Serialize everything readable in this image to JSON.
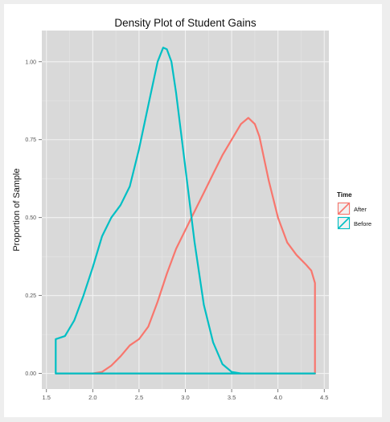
{
  "chart_data": {
    "type": "line",
    "title": "Density Plot of Student Gains",
    "xlabel": "",
    "ylabel": "Proportion of Sample",
    "xlim": [
      1.45,
      4.55
    ],
    "ylim": [
      -0.05,
      1.1
    ],
    "x_ticks": [
      1.5,
      2.0,
      2.5,
      3.0,
      3.5,
      4.0,
      4.5
    ],
    "x_tick_labels": [
      "1.5",
      "2.0",
      "2.5",
      "3.0",
      "3.5",
      "4.0",
      "4.5"
    ],
    "y_ticks": [
      0.0,
      0.25,
      0.5,
      0.75,
      1.0
    ],
    "y_tick_labels": [
      "0.00",
      "0.25",
      "0.50",
      "0.75",
      "1.00"
    ],
    "grid": true,
    "legend_position": "right",
    "legend_title": "Time",
    "series": [
      {
        "name": "After",
        "color": "#F8766D",
        "points": [
          [
            1.6,
            0.0
          ],
          [
            2.0,
            0.0
          ],
          [
            2.1,
            0.005
          ],
          [
            2.2,
            0.025
          ],
          [
            2.3,
            0.055
          ],
          [
            2.4,
            0.09
          ],
          [
            2.5,
            0.11
          ],
          [
            2.6,
            0.15
          ],
          [
            2.7,
            0.23
          ],
          [
            2.8,
            0.32
          ],
          [
            2.9,
            0.4
          ],
          [
            3.0,
            0.46
          ],
          [
            3.1,
            0.52
          ],
          [
            3.2,
            0.58
          ],
          [
            3.3,
            0.64
          ],
          [
            3.4,
            0.7
          ],
          [
            3.5,
            0.75
          ],
          [
            3.6,
            0.8
          ],
          [
            3.68,
            0.82
          ],
          [
            3.75,
            0.8
          ],
          [
            3.8,
            0.76
          ],
          [
            3.9,
            0.62
          ],
          [
            4.0,
            0.5
          ],
          [
            4.1,
            0.42
          ],
          [
            4.2,
            0.38
          ],
          [
            4.3,
            0.35
          ],
          [
            4.36,
            0.33
          ],
          [
            4.4,
            0.29
          ],
          [
            4.4,
            0.0
          ],
          [
            1.6,
            0.0
          ]
        ]
      },
      {
        "name": "Before",
        "color": "#00BFC4",
        "points": [
          [
            1.6,
            0.0
          ],
          [
            1.6,
            0.11
          ],
          [
            1.7,
            0.12
          ],
          [
            1.8,
            0.17
          ],
          [
            1.9,
            0.25
          ],
          [
            2.0,
            0.34
          ],
          [
            2.1,
            0.44
          ],
          [
            2.2,
            0.5
          ],
          [
            2.3,
            0.54
          ],
          [
            2.4,
            0.6
          ],
          [
            2.5,
            0.72
          ],
          [
            2.6,
            0.86
          ],
          [
            2.7,
            1.0
          ],
          [
            2.76,
            1.045
          ],
          [
            2.8,
            1.04
          ],
          [
            2.85,
            1.0
          ],
          [
            2.9,
            0.9
          ],
          [
            3.0,
            0.66
          ],
          [
            3.1,
            0.42
          ],
          [
            3.2,
            0.22
          ],
          [
            3.3,
            0.1
          ],
          [
            3.4,
            0.03
          ],
          [
            3.5,
            0.005
          ],
          [
            3.6,
            0.0
          ],
          [
            4.4,
            0.0
          ],
          [
            1.6,
            0.0
          ]
        ]
      }
    ]
  }
}
